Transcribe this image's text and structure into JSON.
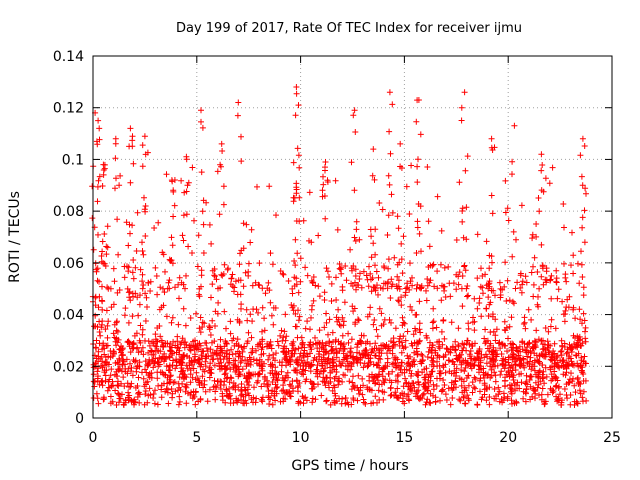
{
  "chart_data": {
    "type": "scatter",
    "title": "Day 199 of 2017, Rate Of TEC Index for receiver ijmu",
    "xlabel": "GPS time / hours",
    "ylabel": "ROTI / TECUs",
    "xlim": [
      0,
      25
    ],
    "ylim": [
      0,
      0.14
    ],
    "xticks": [
      0,
      5,
      10,
      15,
      20,
      25
    ],
    "xtick_labels": [
      "0",
      "5",
      "10",
      "15",
      "20",
      "25"
    ],
    "yticks": [
      0,
      0.02,
      0.04,
      0.06,
      0.08,
      0.1,
      0.12,
      0.14
    ],
    "ytick_labels": [
      "0",
      "0.02",
      "0.04",
      "0.06",
      "0.08",
      "0.1",
      "0.12",
      "0.14"
    ],
    "grid": true,
    "marker": "+",
    "series": [
      {
        "name": "ROTI",
        "color": "#ff0000",
        "x_range": [
          0,
          23.8
        ],
        "peaks": [
          {
            "x": 0.1,
            "y": 0.118
          },
          {
            "x": 0.3,
            "y": 0.112
          },
          {
            "x": 0.5,
            "y": 0.098
          },
          {
            "x": 1.1,
            "y": 0.108
          },
          {
            "x": 1.8,
            "y": 0.112
          },
          {
            "x": 2.5,
            "y": 0.109
          },
          {
            "x": 3.8,
            "y": 0.092
          },
          {
            "x": 4.5,
            "y": 0.101
          },
          {
            "x": 5.2,
            "y": 0.119
          },
          {
            "x": 6.2,
            "y": 0.106
          },
          {
            "x": 7.0,
            "y": 0.122
          },
          {
            "x": 9.8,
            "y": 0.128
          },
          {
            "x": 9.9,
            "y": 0.121
          },
          {
            "x": 11.2,
            "y": 0.099
          },
          {
            "x": 12.6,
            "y": 0.119
          },
          {
            "x": 13.5,
            "y": 0.104
          },
          {
            "x": 14.3,
            "y": 0.126
          },
          {
            "x": 14.8,
            "y": 0.106
          },
          {
            "x": 15.7,
            "y": 0.123
          },
          {
            "x": 17.9,
            "y": 0.126
          },
          {
            "x": 19.2,
            "y": 0.108
          },
          {
            "x": 20.3,
            "y": 0.113
          },
          {
            "x": 21.6,
            "y": 0.102
          },
          {
            "x": 23.6,
            "y": 0.108
          }
        ],
        "baseline_range": [
          0.005,
          0.03
        ],
        "typical_max": 0.06
      }
    ]
  }
}
